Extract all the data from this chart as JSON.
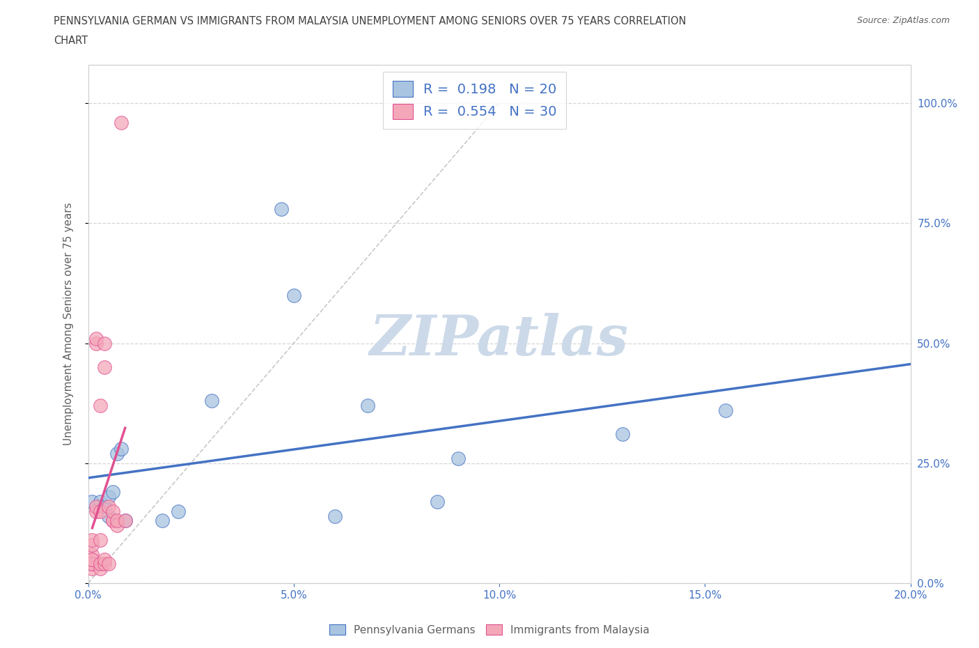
{
  "title_line1": "PENNSYLVANIA GERMAN VS IMMIGRANTS FROM MALAYSIA UNEMPLOYMENT AMONG SENIORS OVER 75 YEARS CORRELATION",
  "title_line2": "CHART",
  "source_text": "Source: ZipAtlas.com",
  "ylabel": "Unemployment Among Seniors over 75 years",
  "xlim": [
    0.0,
    0.2
  ],
  "ylim": [
    0.0,
    1.08
  ],
  "xtick_vals": [
    0.0,
    0.05,
    0.1,
    0.15,
    0.2
  ],
  "ytick_vals": [
    0.0,
    0.25,
    0.5,
    0.75,
    1.0
  ],
  "blue_color": "#a8c4e0",
  "pink_color": "#f4a7b9",
  "blue_line_color": "#4472c4",
  "pink_line_color": "#e05090",
  "blue_scatter": [
    [
      0.001,
      0.17
    ],
    [
      0.003,
      0.17
    ],
    [
      0.004,
      0.16
    ],
    [
      0.005,
      0.18
    ],
    [
      0.005,
      0.14
    ],
    [
      0.006,
      0.19
    ],
    [
      0.007,
      0.27
    ],
    [
      0.008,
      0.28
    ],
    [
      0.009,
      0.13
    ],
    [
      0.018,
      0.13
    ],
    [
      0.022,
      0.15
    ],
    [
      0.03,
      0.38
    ],
    [
      0.047,
      0.78
    ],
    [
      0.05,
      0.6
    ],
    [
      0.06,
      0.14
    ],
    [
      0.068,
      0.37
    ],
    [
      0.085,
      0.17
    ],
    [
      0.09,
      0.26
    ],
    [
      0.13,
      0.31
    ],
    [
      0.155,
      0.36
    ]
  ],
  "pink_scatter": [
    [
      0.001,
      0.03
    ],
    [
      0.001,
      0.04
    ],
    [
      0.001,
      0.05
    ],
    [
      0.001,
      0.06
    ],
    [
      0.001,
      0.08
    ],
    [
      0.001,
      0.04
    ],
    [
      0.001,
      0.05
    ],
    [
      0.001,
      0.09
    ],
    [
      0.002,
      0.5
    ],
    [
      0.002,
      0.51
    ],
    [
      0.002,
      0.15
    ],
    [
      0.002,
      0.16
    ],
    [
      0.003,
      0.15
    ],
    [
      0.003,
      0.37
    ],
    [
      0.003,
      0.03
    ],
    [
      0.003,
      0.04
    ],
    [
      0.003,
      0.09
    ],
    [
      0.004,
      0.45
    ],
    [
      0.004,
      0.5
    ],
    [
      0.004,
      0.04
    ],
    [
      0.004,
      0.05
    ],
    [
      0.005,
      0.04
    ],
    [
      0.005,
      0.16
    ],
    [
      0.006,
      0.13
    ],
    [
      0.006,
      0.13
    ],
    [
      0.006,
      0.15
    ],
    [
      0.007,
      0.12
    ],
    [
      0.007,
      0.13
    ],
    [
      0.008,
      0.96
    ],
    [
      0.009,
      0.13
    ]
  ],
  "blue_R": 0.198,
  "blue_N": 20,
  "pink_R": 0.554,
  "pink_N": 30,
  "legend_blue_label": "R =  0.198   N = 20",
  "legend_pink_label": "R =  0.554   N = 30",
  "bottom_legend_blue": "Pennsylvania Germans",
  "bottom_legend_pink": "Immigrants from Malaysia",
  "background_color": "#ffffff",
  "grid_color": "#cccccc",
  "title_color": "#404040",
  "axis_label_color": "#606060",
  "tick_label_color": "#4472c4",
  "watermark_text": "ZIPatlas",
  "watermark_color": "#ccd9e8"
}
